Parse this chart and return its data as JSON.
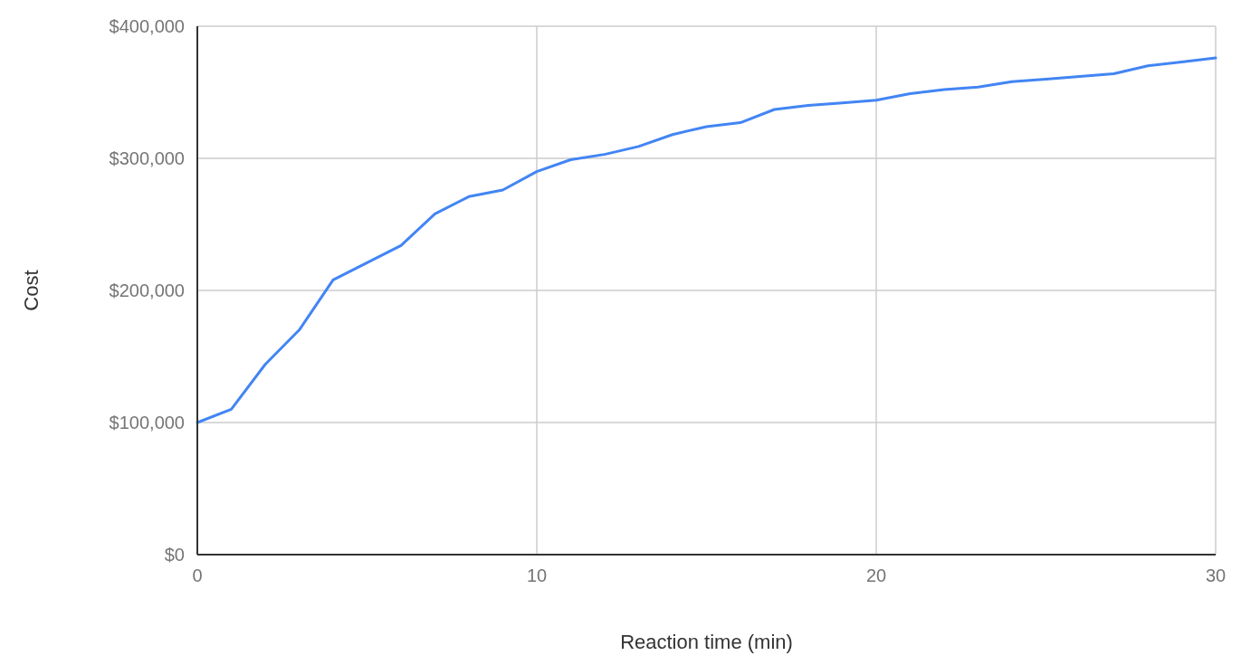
{
  "chart_data": {
    "type": "line",
    "xlabel": "Reaction time (min)",
    "ylabel": "Cost",
    "x": [
      0,
      1,
      2,
      3,
      4,
      5,
      6,
      7,
      8,
      9,
      10,
      11,
      12,
      13,
      14,
      15,
      16,
      17,
      18,
      19,
      20,
      21,
      22,
      23,
      24,
      25,
      26,
      27,
      28,
      29,
      30
    ],
    "series": [
      {
        "color": "#4285f4",
        "values": [
          100000,
          110000,
          144000,
          170000,
          208000,
          221000,
          234000,
          258000,
          271000,
          276000,
          290000,
          299000,
          303000,
          309000,
          318000,
          324000,
          327000,
          337000,
          340000,
          342000,
          344000,
          349000,
          352000,
          354000,
          358000,
          360000,
          362000,
          364000,
          370000,
          373000,
          376000
        ]
      }
    ],
    "xlim": [
      0,
      30
    ],
    "xticks": [
      0,
      10,
      20,
      30
    ],
    "ylim": [
      0,
      400000
    ],
    "yticks": [
      {
        "value": 0,
        "label": "$0"
      },
      {
        "value": 100000,
        "label": "$100,000"
      },
      {
        "value": 200000,
        "label": "$200,000"
      },
      {
        "value": 300000,
        "label": "$300,000"
      },
      {
        "value": 400000,
        "label": "$400,000"
      }
    ],
    "grid": true,
    "marker": "none",
    "line_style": "solid"
  }
}
